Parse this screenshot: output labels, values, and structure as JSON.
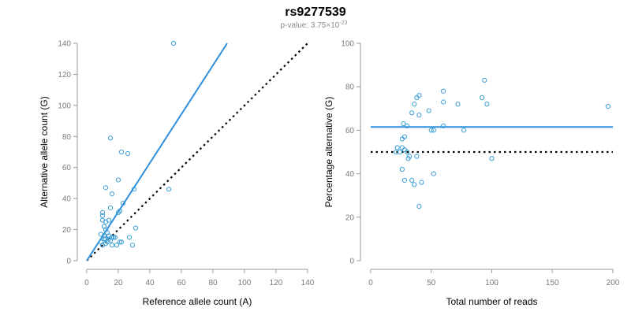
{
  "title": "rs9277539",
  "subtitle": {
    "prefix": "p-value: 3.75×10",
    "exponent": "-23"
  },
  "colors": {
    "point": "#3a9fd6",
    "fit": "#2f8fdc",
    "reference": "#000000",
    "axis": "#9a9a9a",
    "tick_text": "#7a7a7a"
  },
  "chart_data": [
    {
      "type": "scatter",
      "xlabel": "Reference allele count (A)",
      "ylabel": "Alternative allele count (G)",
      "xlim": [
        0,
        140
      ],
      "ylim": [
        0,
        140
      ],
      "xticks": [
        0,
        20,
        40,
        60,
        80,
        100,
        120,
        140
      ],
      "yticks": [
        0,
        20,
        40,
        60,
        80,
        100,
        120,
        140
      ],
      "grid": false,
      "points": [
        [
          55,
          140
        ],
        [
          15,
          79
        ],
        [
          22,
          70
        ],
        [
          26,
          69
        ],
        [
          12,
          47
        ],
        [
          30,
          46
        ],
        [
          52,
          46
        ],
        [
          16,
          43
        ],
        [
          20,
          52
        ],
        [
          23,
          37
        ],
        [
          20,
          31
        ],
        [
          21,
          32
        ],
        [
          10,
          31
        ],
        [
          10,
          29
        ],
        [
          10,
          26
        ],
        [
          12,
          25
        ],
        [
          14,
          26
        ],
        [
          15,
          34
        ],
        [
          31,
          21
        ],
        [
          11,
          22
        ],
        [
          12,
          20
        ],
        [
          13,
          18
        ],
        [
          9,
          17
        ],
        [
          11,
          16
        ],
        [
          14,
          16
        ],
        [
          16,
          15
        ],
        [
          12,
          14
        ],
        [
          9,
          12
        ],
        [
          13,
          12
        ],
        [
          17,
          15
        ],
        [
          18,
          15
        ],
        [
          21,
          12
        ],
        [
          22,
          12
        ],
        [
          16,
          10
        ],
        [
          19,
          10
        ],
        [
          14,
          14
        ],
        [
          10,
          10
        ],
        [
          12,
          11
        ],
        [
          27,
          15
        ],
        [
          29,
          10
        ],
        [
          15,
          13
        ],
        [
          11,
          14
        ]
      ],
      "fit_line": {
        "x": [
          0,
          89
        ],
        "y": [
          0,
          140
        ]
      },
      "reference_line": {
        "x": [
          0,
          140
        ],
        "y": [
          0,
          140
        ]
      }
    },
    {
      "type": "scatter",
      "xlabel": "Total number of reads",
      "ylabel": "Percentage alternative (G)",
      "xlim": [
        0,
        200
      ],
      "ylim": [
        0,
        100
      ],
      "xticks": [
        0,
        50,
        100,
        150,
        200
      ],
      "yticks": [
        0,
        20,
        40,
        60,
        80,
        100
      ],
      "grid": false,
      "points": [
        [
          94,
          83
        ],
        [
          60,
          78
        ],
        [
          38,
          75
        ],
        [
          40,
          76
        ],
        [
          92,
          75
        ],
        [
          60,
          73
        ],
        [
          36,
          72
        ],
        [
          72,
          72
        ],
        [
          96,
          72
        ],
        [
          196,
          71
        ],
        [
          48,
          69
        ],
        [
          34,
          68
        ],
        [
          40,
          67
        ],
        [
          27,
          63
        ],
        [
          30,
          62
        ],
        [
          60,
          62
        ],
        [
          50,
          60
        ],
        [
          52,
          60
        ],
        [
          77,
          60
        ],
        [
          28,
          57
        ],
        [
          26,
          56
        ],
        [
          22,
          52
        ],
        [
          26,
          52
        ],
        [
          28,
          51
        ],
        [
          21,
          50
        ],
        [
          24,
          50
        ],
        [
          30,
          50
        ],
        [
          32,
          48
        ],
        [
          38,
          48
        ],
        [
          31,
          47
        ],
        [
          26,
          42
        ],
        [
          52,
          40
        ],
        [
          100,
          47
        ],
        [
          28,
          37
        ],
        [
          34,
          37
        ],
        [
          36,
          35
        ],
        [
          42,
          36
        ],
        [
          40,
          25
        ]
      ],
      "fit_line": {
        "x": [
          0,
          200
        ],
        "y": [
          61.5,
          61.5
        ]
      },
      "reference_line": {
        "x": [
          0,
          200
        ],
        "y": [
          50,
          50
        ]
      }
    }
  ]
}
